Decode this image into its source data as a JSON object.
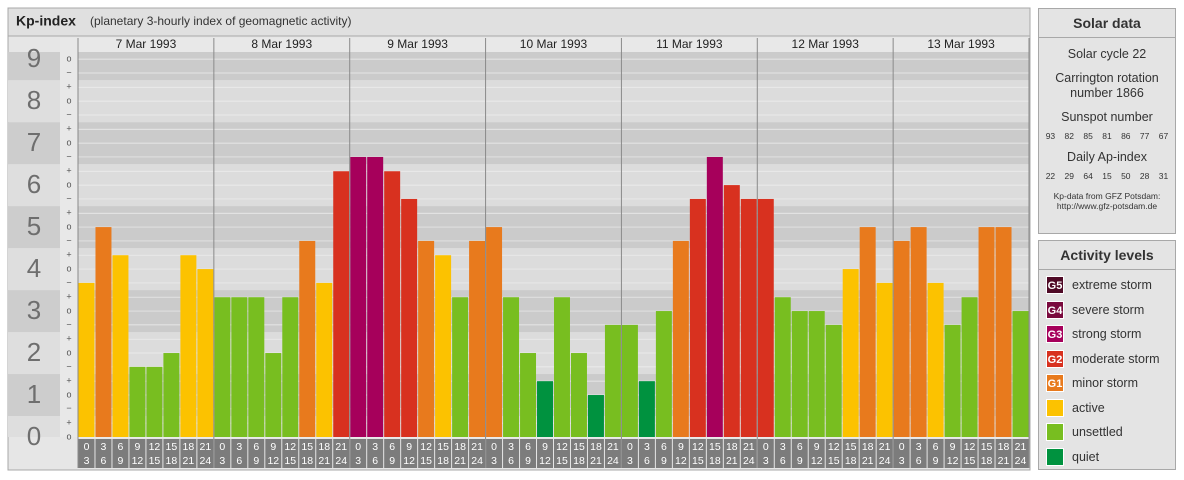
{
  "chart_data": {
    "type": "bar",
    "title": "Kp-index",
    "subtitle": "(planetary 3-hourly index of geomagnetic activity)",
    "days": [
      "7 Mar 1993",
      "8 Mar 1993",
      "9 Mar 1993",
      "10 Mar 1993",
      "11 Mar 1993",
      "12 Mar 1993",
      "13 Mar 1993"
    ],
    "interval_start": [
      0,
      3,
      6,
      9,
      12,
      15,
      18,
      21
    ],
    "interval_end": [
      3,
      6,
      9,
      12,
      15,
      18,
      21,
      24
    ],
    "values": [
      3.67,
      5,
      4.33,
      1.67,
      1.67,
      2,
      4.33,
      4,
      3.33,
      3.33,
      3.33,
      2,
      3.33,
      4.67,
      3.67,
      6.33,
      6.67,
      6.67,
      6.33,
      5.67,
      4.67,
      4.33,
      3.33,
      4.67,
      5,
      3.33,
      2,
      1.33,
      3.33,
      2,
      1,
      2.67,
      2.67,
      1.33,
      3,
      4.67,
      5.67,
      6.67,
      6,
      5.67,
      5.67,
      3.33,
      3,
      3,
      2.67,
      4,
      5,
      3.67,
      4.67,
      5,
      3.67,
      2.67,
      3.33,
      5,
      5,
      3
    ],
    "colors": [
      "#fcc200",
      "#e87a1d",
      "#fcc200",
      "#78be20",
      "#78be20",
      "#78be20",
      "#fcc200",
      "#fcc200",
      "#78be20",
      "#78be20",
      "#78be20",
      "#78be20",
      "#78be20",
      "#e87a1d",
      "#fcc200",
      "#d8311f",
      "#a6005b",
      "#a6005b",
      "#d8311f",
      "#d8311f",
      "#e87a1d",
      "#fcc200",
      "#78be20",
      "#e87a1d",
      "#e87a1d",
      "#78be20",
      "#78be20",
      "#00923f",
      "#78be20",
      "#78be20",
      "#00923f",
      "#78be20",
      "#78be20",
      "#00923f",
      "#78be20",
      "#e87a1d",
      "#d8311f",
      "#a6005b",
      "#d8311f",
      "#d8311f",
      "#d8311f",
      "#78be20",
      "#78be20",
      "#78be20",
      "#78be20",
      "#fcc200",
      "#e87a1d",
      "#fcc200",
      "#e87a1d",
      "#e87a1d",
      "#fcc200",
      "#78be20",
      "#78be20",
      "#e87a1d",
      "#e87a1d",
      "#78be20"
    ],
    "ylim": [
      0,
      9.17
    ],
    "yticks": [
      0,
      1,
      2,
      3,
      4,
      5,
      6,
      7,
      8,
      9
    ],
    "minor_ticks": [
      {
        "value": 0,
        "label": "o"
      },
      {
        "value": 0.33,
        "label": "+"
      },
      {
        "value": 0.67,
        "label": "−"
      },
      {
        "value": 1,
        "label": "o"
      },
      {
        "value": 1.33,
        "label": "+"
      },
      {
        "value": 1.67,
        "label": "−"
      },
      {
        "value": 2,
        "label": "o"
      },
      {
        "value": 2.33,
        "label": "+"
      },
      {
        "value": 2.67,
        "label": "−"
      },
      {
        "value": 3,
        "label": "o"
      },
      {
        "value": 3.33,
        "label": "+"
      },
      {
        "value": 3.67,
        "label": "−"
      },
      {
        "value": 4,
        "label": "o"
      },
      {
        "value": 4.33,
        "label": "+"
      },
      {
        "value": 4.67,
        "label": "−"
      },
      {
        "value": 5,
        "label": "o"
      },
      {
        "value": 5.33,
        "label": "+"
      },
      {
        "value": 5.67,
        "label": "−"
      },
      {
        "value": 6,
        "label": "o"
      },
      {
        "value": 6.33,
        "label": "+"
      },
      {
        "value": 6.67,
        "label": "−"
      },
      {
        "value": 7,
        "label": "o"
      },
      {
        "value": 7.33,
        "label": "+"
      },
      {
        "value": 7.67,
        "label": "−"
      },
      {
        "value": 8,
        "label": "o"
      },
      {
        "value": 8.33,
        "label": "+"
      },
      {
        "value": 8.67,
        "label": "−"
      },
      {
        "value": 9,
        "label": "o"
      }
    ],
    "grid": true
  },
  "solar_data": {
    "title": "Solar data",
    "solar_cycle": "Solar cycle 22",
    "carrington": "Carrington rotation number 1866",
    "sunspot_title": "Sunspot number",
    "sunspot_numbers": [
      93,
      82,
      85,
      81,
      86,
      77,
      67
    ],
    "ap_title": "Daily Ap-index",
    "ap_index": [
      22,
      29,
      64,
      15,
      50,
      28,
      31
    ],
    "source": "Kp-data from GFZ Potsdam:",
    "source_url": "http://www.gfz-potsdam.de"
  },
  "activity_levels": {
    "title": "Activity levels",
    "items": [
      {
        "badge": "G5",
        "label": "extreme storm",
        "color": "#4f0a26"
      },
      {
        "badge": "G4",
        "label": "severe storm",
        "color": "#7a0a3e"
      },
      {
        "badge": "G3",
        "label": "strong storm",
        "color": "#a6005b"
      },
      {
        "badge": "G2",
        "label": "moderate storm",
        "color": "#d8311f"
      },
      {
        "badge": "G1",
        "label": "minor storm",
        "color": "#e87a1d"
      },
      {
        "label": "active",
        "color": "#fcc200"
      },
      {
        "label": "unsettled",
        "color": "#78be20"
      },
      {
        "label": "quiet",
        "color": "#00923f"
      }
    ]
  }
}
